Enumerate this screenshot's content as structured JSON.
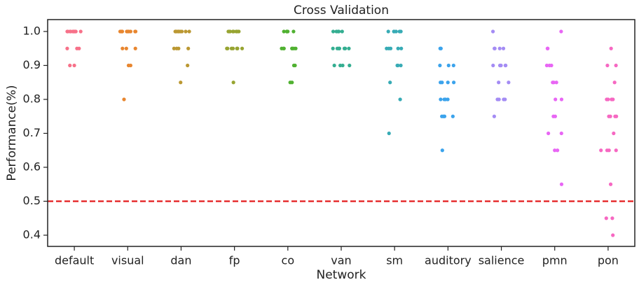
{
  "chart_data": {
    "type": "strip",
    "title": "Cross Validation",
    "x_label": "Network",
    "y_label": "Performance(%)",
    "categories": [
      "default",
      "visual",
      "dan",
      "fp",
      "co",
      "van",
      "sm",
      "auditory",
      "salience",
      "pmn",
      "pon"
    ],
    "colors": [
      "#f77189",
      "#e8862f",
      "#bb9832",
      "#97a431",
      "#50b131",
      "#34ae91",
      "#37abb5",
      "#3ba3ec",
      "#a48cf4",
      "#e866f4",
      "#f668c2"
    ],
    "values": [
      [
        1,
        1,
        1,
        1,
        1,
        1,
        1,
        1,
        1,
        1,
        1,
        0.95,
        0.95,
        0.95,
        0.9,
        0.9
      ],
      [
        1,
        1,
        1,
        1,
        1,
        1,
        1,
        1,
        1,
        1,
        0.95,
        0.95,
        0.95,
        0.9,
        0.9,
        0.8
      ],
      [
        1,
        1,
        1,
        1,
        1,
        1,
        1,
        1,
        1,
        0.95,
        0.95,
        0.95,
        0.95,
        0.9,
        0.85
      ],
      [
        1,
        1,
        1,
        1,
        1,
        1,
        1,
        1,
        0.95,
        0.95,
        0.95,
        0.95,
        0.95,
        0.95,
        0.95,
        0.85
      ],
      [
        1,
        1,
        1,
        1,
        1,
        1,
        0.95,
        0.95,
        0.95,
        0.95,
        0.95,
        0.95,
        0.95,
        0.9,
        0.9,
        0.85,
        0.85
      ],
      [
        1,
        1,
        1,
        1,
        1,
        0.95,
        0.95,
        0.95,
        0.95,
        0.95,
        0.95,
        0.95,
        0.9,
        0.9,
        0.9,
        0.9
      ],
      [
        1,
        1,
        1,
        1,
        1,
        1,
        0.95,
        0.95,
        0.95,
        0.95,
        0.95,
        0.9,
        0.9,
        0.9,
        0.85,
        0.8,
        0.7
      ],
      [
        0.95,
        0.95,
        0.9,
        0.9,
        0.9,
        0.85,
        0.85,
        0.85,
        0.85,
        0.8,
        0.8,
        0.8,
        0.8,
        0.75,
        0.75,
        0.75,
        0.75,
        0.65
      ],
      [
        1,
        0.95,
        0.95,
        0.95,
        0.95,
        0.9,
        0.9,
        0.9,
        0.9,
        0.9,
        0.9,
        0.85,
        0.85,
        0.8,
        0.8,
        0.8,
        0.8,
        0.75
      ],
      [
        1,
        0.95,
        0.95,
        0.9,
        0.9,
        0.9,
        0.85,
        0.85,
        0.85,
        0.8,
        0.8,
        0.75,
        0.75,
        0.7,
        0.7,
        0.65,
        0.65,
        0.55
      ],
      [
        0.95,
        0.9,
        0.9,
        0.85,
        0.8,
        0.8,
        0.8,
        0.8,
        0.75,
        0.75,
        0.75,
        0.75,
        0.7,
        0.65,
        0.65,
        0.65,
        0.65,
        0.55,
        0.45,
        0.45,
        0.4
      ]
    ],
    "ylim": [
      0.367,
      1.035
    ],
    "yticks": [
      0.4,
      0.5,
      0.6,
      0.7,
      0.8,
      0.9,
      {
        "value": 1,
        "label": "1.0"
      }
    ],
    "reference_line": {
      "value": 0.5,
      "color": "#e31a1c"
    }
  }
}
